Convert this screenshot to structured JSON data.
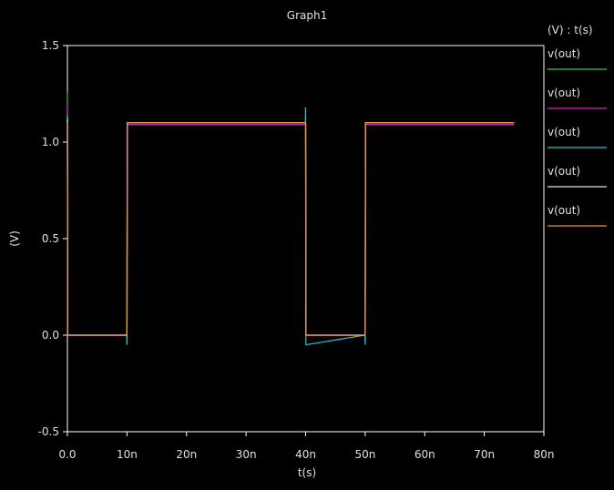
{
  "chart_data": {
    "type": "line",
    "title": "Graph1",
    "xlabel": "t(s)",
    "ylabel": "(V)",
    "xlim": [
      0,
      80
    ],
    "ylim": [
      -0.5,
      1.5
    ],
    "grid": false,
    "legend_position": "right",
    "legend_header": "(V) : t(s)",
    "x_ticks": [
      {
        "value": 0,
        "label": "0.0"
      },
      {
        "value": 10,
        "label": "10n"
      },
      {
        "value": 20,
        "label": "20n"
      },
      {
        "value": 30,
        "label": "30n"
      },
      {
        "value": 40,
        "label": "40n"
      },
      {
        "value": 50,
        "label": "50n"
      },
      {
        "value": 60,
        "label": "60n"
      },
      {
        "value": 70,
        "label": "70n"
      },
      {
        "value": 80,
        "label": "80n"
      }
    ],
    "y_ticks": [
      {
        "value": -0.5,
        "label": "-0.5"
      },
      {
        "value": 0.0,
        "label": "0.0"
      },
      {
        "value": 0.5,
        "label": "0.5"
      },
      {
        "value": 1.0,
        "label": "1.0"
      },
      {
        "value": 1.5,
        "label": "1.5"
      }
    ],
    "series": [
      {
        "name": "v(out)",
        "color": "#22d04a",
        "x": [
          0,
          0,
          0.05,
          0.1,
          9.95,
          10.0,
          10.05,
          39.95,
          40.0,
          40.05,
          49.95,
          50.0,
          50.05,
          75
        ],
        "y": [
          1.26,
          1.18,
          0.0,
          0.0,
          0.0,
          0.0,
          1.09,
          1.09,
          1.09,
          0.0,
          0.0,
          0.0,
          1.09,
          1.09
        ]
      },
      {
        "name": "v(out)",
        "color": "#e020d0",
        "x": [
          0,
          0,
          0.05,
          0.1,
          9.95,
          10.0,
          10.05,
          39.95,
          40.0,
          40.05,
          49.95,
          50.0,
          50.05,
          75
        ],
        "y": [
          1.2,
          1.16,
          0.0,
          0.0,
          0.0,
          0.0,
          1.09,
          1.09,
          1.09,
          0.0,
          0.0,
          0.0,
          1.09,
          1.09
        ]
      },
      {
        "name": "v(out)",
        "color": "#22c8d0",
        "x": [
          0,
          0,
          0.05,
          0.1,
          9.95,
          10.0,
          10.05,
          39.95,
          40.0,
          40.05,
          49.95,
          50.0,
          50.05,
          75
        ],
        "y": [
          1.14,
          1.12,
          0.0,
          0.0,
          0.0,
          -0.05,
          1.1,
          1.1,
          1.18,
          -0.05,
          0.0,
          -0.05,
          1.1,
          1.1
        ]
      },
      {
        "name": "v(out)",
        "color": "#e8e8d0",
        "x": [
          0,
          0,
          0.05,
          0.1,
          9.95,
          10.0,
          10.05,
          39.95,
          40.0,
          40.05,
          49.95,
          50.0,
          50.05,
          75
        ],
        "y": [
          1.12,
          1.1,
          0.0,
          0.0,
          0.0,
          0.0,
          1.1,
          1.1,
          1.1,
          0.0,
          0.0,
          0.0,
          1.1,
          1.1
        ]
      },
      {
        "name": "v(out)",
        "color": "#f0902a",
        "x": [
          0,
          0,
          0.05,
          0.1,
          9.95,
          10.0,
          10.05,
          39.95,
          40.0,
          40.05,
          49.95,
          50.0,
          50.05,
          75
        ],
        "y": [
          1.1,
          1.1,
          0.0,
          0.0,
          0.0,
          0.0,
          1.1,
          1.1,
          1.1,
          0.0,
          0.0,
          0.0,
          1.1,
          1.1
        ]
      }
    ]
  }
}
